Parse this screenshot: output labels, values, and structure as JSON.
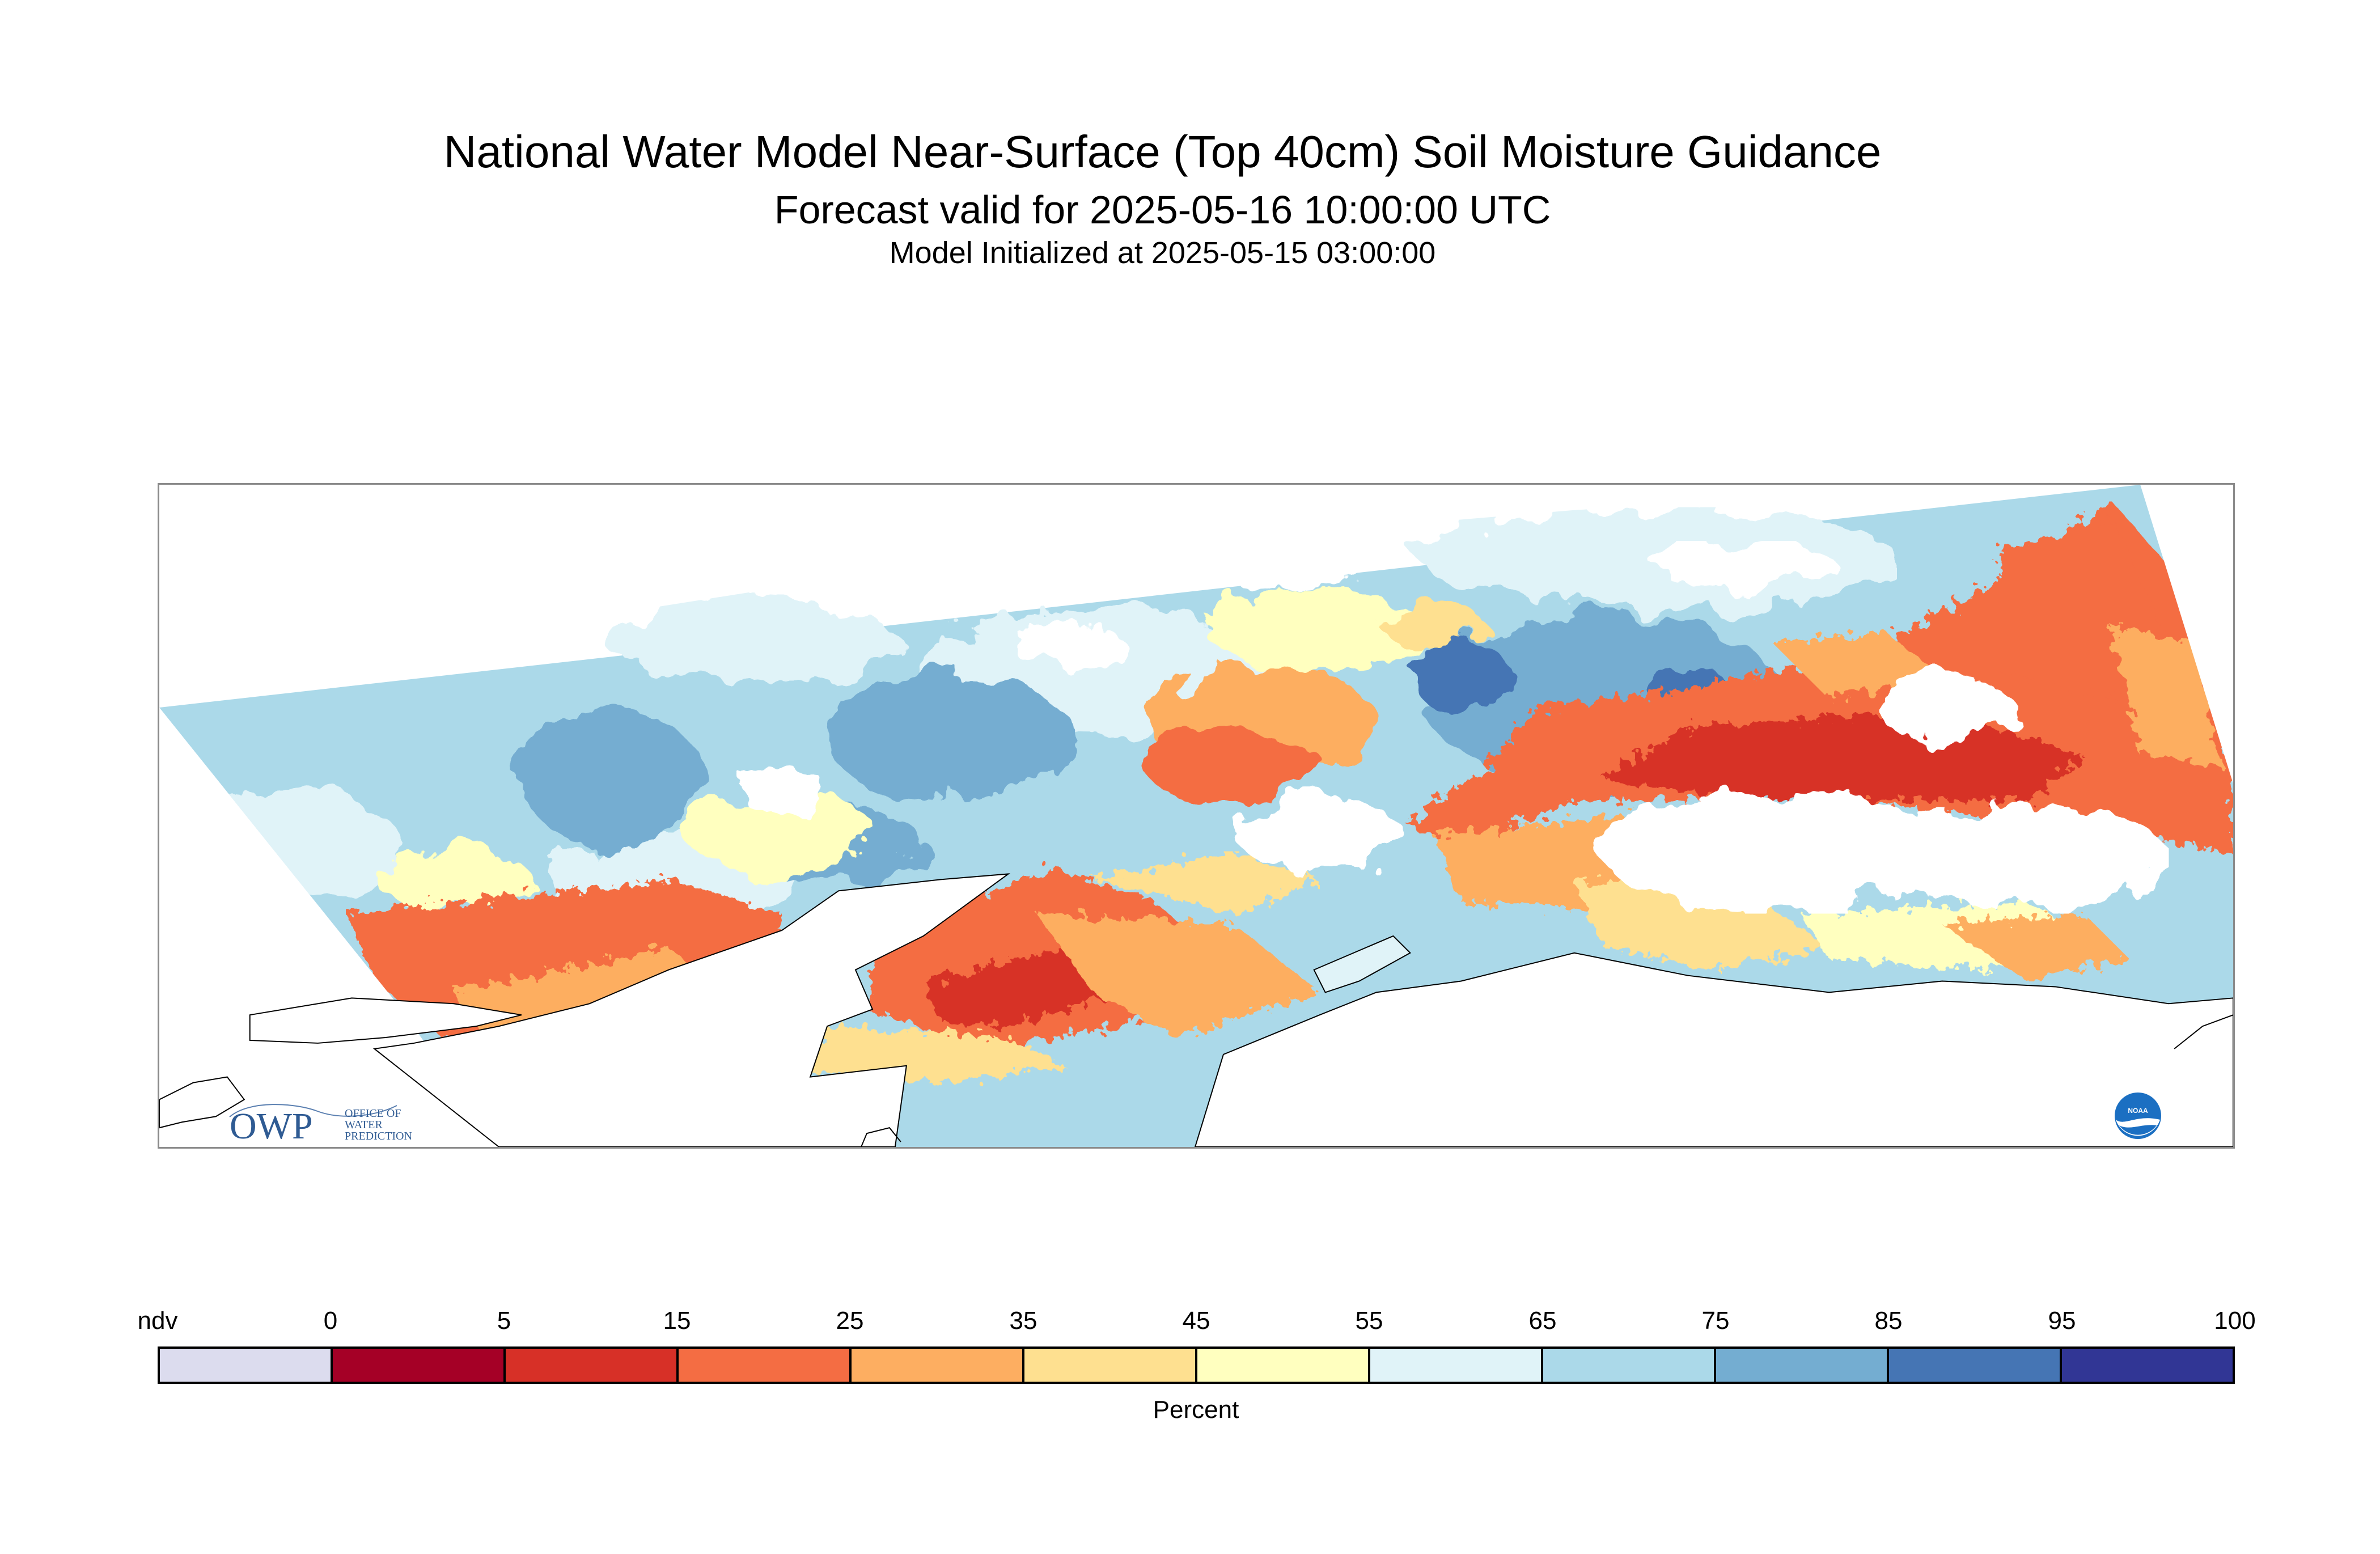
{
  "header": {
    "title": "National Water Model Near-Surface (Top 40cm) Soil Moisture Guidance",
    "valid_time": "Forecast valid for 2025-05-16 10:00:00 UTC",
    "init_time": "Model Initialized at 2025-05-15 03:00:00"
  },
  "logos": {
    "owp_mark": "OWP",
    "owp_text": [
      "OFFICE OF",
      "WATER",
      "PREDICTION"
    ],
    "noaa_text": "NOAA"
  },
  "legend": {
    "unit_label": "Percent",
    "tick_labels": [
      "ndv",
      "0",
      "5",
      "15",
      "25",
      "35",
      "45",
      "55",
      "65",
      "75",
      "85",
      "95",
      "100"
    ],
    "bins": [
      {
        "label": "ndv",
        "color": "#dcdcee"
      },
      {
        "label": "0-5",
        "color": "#a50026"
      },
      {
        "label": "5-15",
        "color": "#d73027"
      },
      {
        "label": "15-25",
        "color": "#f46d43"
      },
      {
        "label": "25-35",
        "color": "#fdae61"
      },
      {
        "label": "35-45",
        "color": "#fee090"
      },
      {
        "label": "45-55",
        "color": "#ffffbf"
      },
      {
        "label": "55-65",
        "color": "#e0f3f8"
      },
      {
        "label": "65-75",
        "color": "#abd9e9"
      },
      {
        "label": "75-85",
        "color": "#74add1"
      },
      {
        "label": "85-95",
        "color": "#4575b4"
      },
      {
        "label": "95-100",
        "color": "#313695"
      }
    ]
  }
}
